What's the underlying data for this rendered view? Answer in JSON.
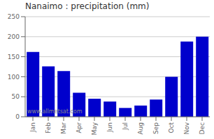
{
  "chart_data": {
    "type": "bar",
    "title": "Nanaimo : precipitation (mm)",
    "categories": [
      "Jan",
      "Feb",
      "Mar",
      "Apr",
      "May",
      "Jun",
      "Jul",
      "Aug",
      "Sep",
      "Oct",
      "Nov",
      "Dec"
    ],
    "values": [
      162,
      126,
      114,
      60,
      45,
      38,
      22,
      28,
      43,
      100,
      188,
      200
    ],
    "color": "#0000CC",
    "ylim": [
      0,
      250
    ],
    "yticks": [
      0,
      50,
      100,
      150,
      200,
      250
    ],
    "grid": true,
    "annotations": [
      "www.allmetsat.com"
    ]
  }
}
